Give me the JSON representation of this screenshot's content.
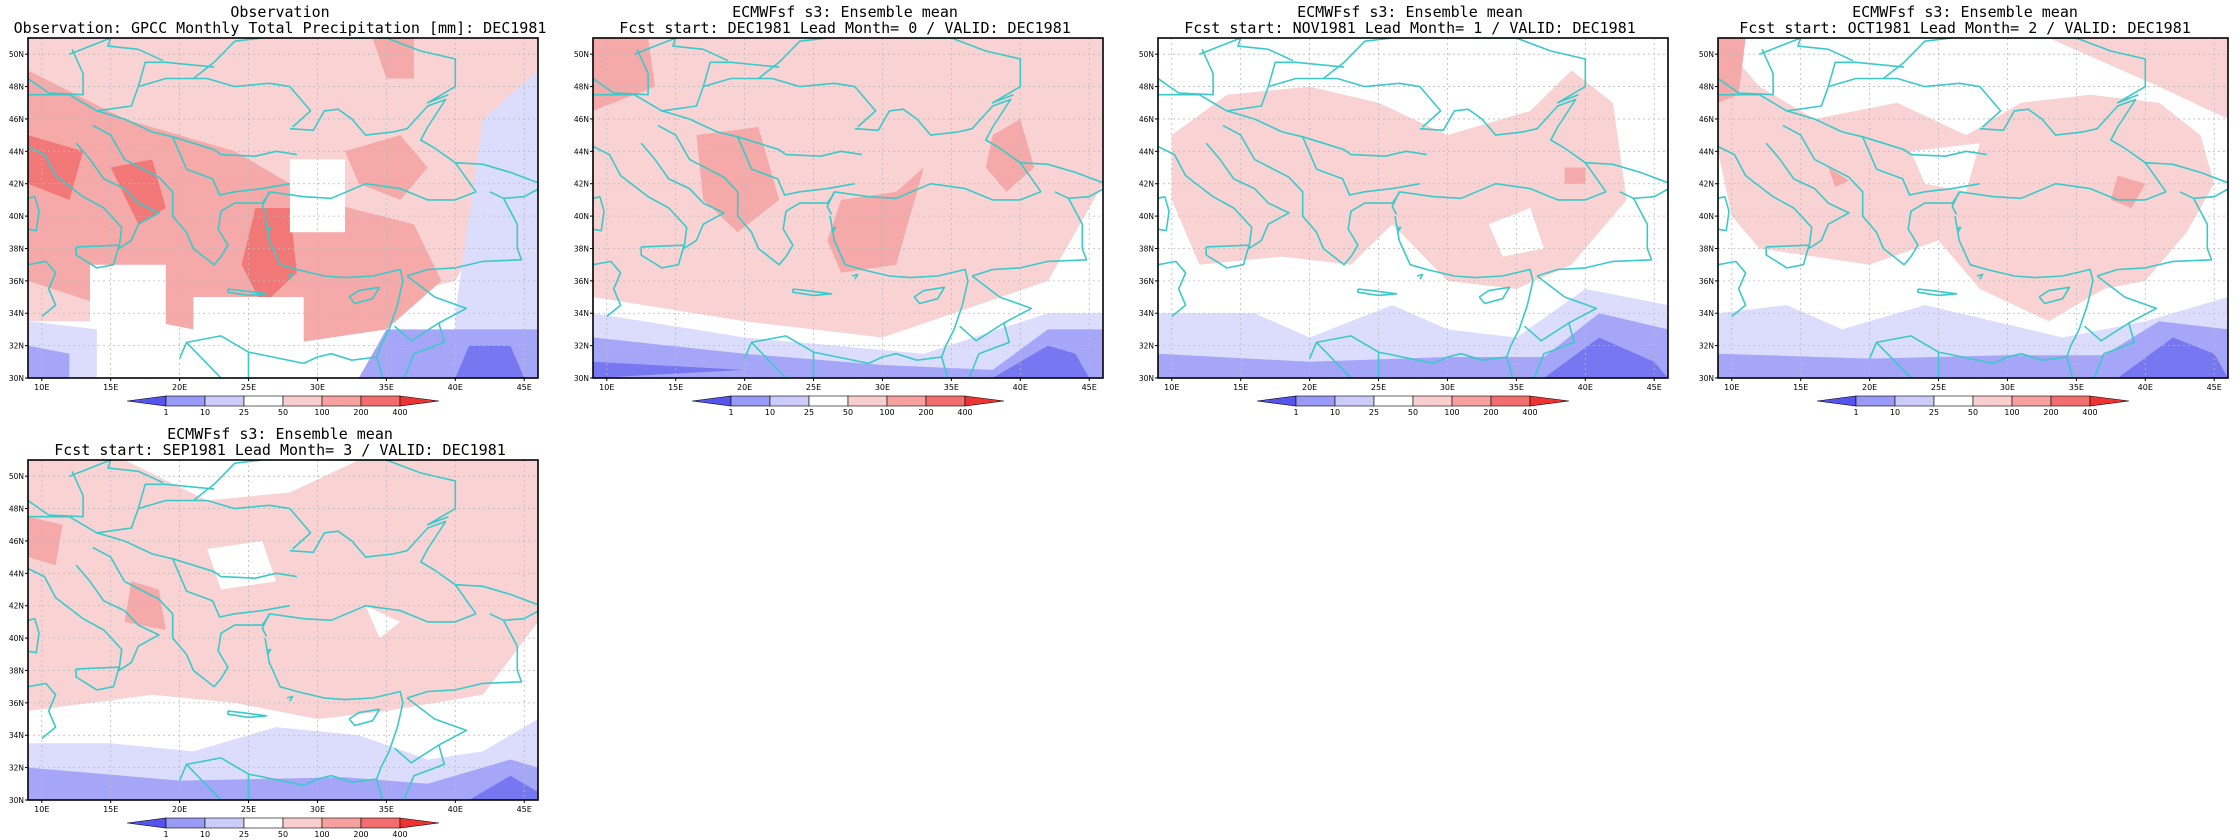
{
  "panels": [
    {
      "id": "obs",
      "title1": "Observation",
      "title2": "Observation: GPCC Monthly Total Precipitation [mm]: DEC1981",
      "variant": "obs"
    },
    {
      "id": "lead0",
      "title1": "ECMWFsf s3: Ensemble mean",
      "title2": "Fcst start: DEC1981  Lead Month= 0 / VALID: DEC1981",
      "variant": "lead0"
    },
    {
      "id": "lead1",
      "title1": "ECMWFsf s3: Ensemble mean",
      "title2": "Fcst start: NOV1981  Lead Month= 1 / VALID: DEC1981",
      "variant": "lead1"
    },
    {
      "id": "lead2",
      "title1": "ECMWFsf s3: Ensemble mean",
      "title2": "Fcst start: OCT1981  Lead Month= 2 / VALID: DEC1981",
      "variant": "lead2"
    },
    {
      "id": "lead3",
      "title1": "ECMWFsf s3: Ensemble mean",
      "title2": "Fcst start: SEP1981  Lead Month= 3 / VALID: DEC1981",
      "variant": "lead3"
    }
  ],
  "axes": {
    "x_ticks": [
      "10E",
      "15E",
      "20E",
      "25E",
      "30E",
      "35E",
      "40E",
      "45E"
    ],
    "y_ticks": [
      "30N",
      "32N",
      "34N",
      "36N",
      "38N",
      "40N",
      "42N",
      "44N",
      "46N",
      "48N",
      "50N"
    ]
  },
  "colorbar": {
    "labels": [
      "1",
      "10",
      "25",
      "50",
      "100",
      "200",
      "400"
    ],
    "colors": [
      "#5555ee",
      "#9999f6",
      "#ccccfa",
      "#ffffff",
      "#f9cece",
      "#f7a0a0",
      "#f26e6e",
      "#ee3333"
    ]
  },
  "palette": {
    "coast": "#3cc9c9",
    "grid": "#bbbbbb",
    "red1": "#f9d3d3",
    "red2": "#f5a9a9",
    "red3": "#f27878",
    "blue1": "#dcdcfc",
    "blue2": "#a6a6f8",
    "blue3": "#7777f2"
  }
}
